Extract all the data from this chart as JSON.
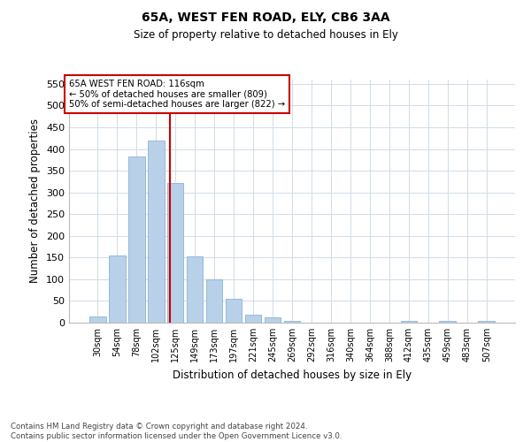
{
  "title1": "65A, WEST FEN ROAD, ELY, CB6 3AA",
  "title2": "Size of property relative to detached houses in Ely",
  "xlabel": "Distribution of detached houses by size in Ely",
  "ylabel": "Number of detached properties",
  "footnote": "Contains HM Land Registry data © Crown copyright and database right 2024.\nContains public sector information licensed under the Open Government Licence v3.0.",
  "bar_labels": [
    "30sqm",
    "54sqm",
    "78sqm",
    "102sqm",
    "125sqm",
    "149sqm",
    "173sqm",
    "197sqm",
    "221sqm",
    "245sqm",
    "269sqm",
    "292sqm",
    "316sqm",
    "340sqm",
    "364sqm",
    "388sqm",
    "412sqm",
    "435sqm",
    "459sqm",
    "483sqm",
    "507sqm"
  ],
  "bar_heights": [
    15,
    155,
    383,
    419,
    322,
    152,
    100,
    55,
    19,
    12,
    5,
    0,
    0,
    0,
    0,
    0,
    5,
    0,
    5,
    0,
    5
  ],
  "bar_color": "#b8d0e8",
  "bar_edge_color": "#8ab4d4",
  "grid_color": "#d0dce8",
  "vline_x": 3.72,
  "vline_color": "#cc0000",
  "annotation_text": "65A WEST FEN ROAD: 116sqm\n← 50% of detached houses are smaller (809)\n50% of semi-detached houses are larger (822) →",
  "annotation_box_color": "#cc0000",
  "ylim": [
    0,
    560
  ],
  "yticks": [
    0,
    50,
    100,
    150,
    200,
    250,
    300,
    350,
    400,
    450,
    500,
    550
  ]
}
